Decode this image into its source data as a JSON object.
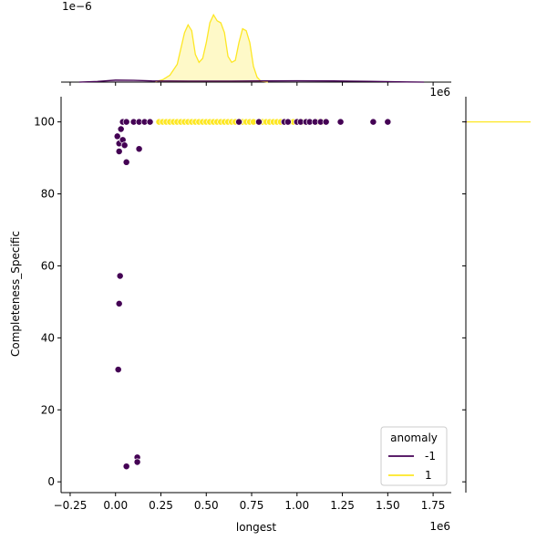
{
  "chart_data": {
    "type": "scatter",
    "title": "",
    "xlabel": "longest",
    "ylabel": "Completeness_Specific",
    "x_offset_label": "1e6",
    "x_scale": 1000000,
    "xlim": [
      -300000,
      1850000
    ],
    "ylim": [
      -3,
      107
    ],
    "x_ticks": [
      -250000,
      0,
      250000,
      500000,
      750000,
      1000000,
      1250000,
      1500000,
      1750000
    ],
    "x_tick_labels": [
      "−0.25",
      "0.00",
      "0.25",
      "0.50",
      "0.75",
      "1.00",
      "1.25",
      "1.50",
      "1.75"
    ],
    "y_ticks": [
      0,
      20,
      40,
      60,
      80,
      100
    ],
    "y_tick_labels": [
      "0",
      "20",
      "40",
      "60",
      "80",
      "100"
    ],
    "grid": false,
    "legend": {
      "title": "anomaly",
      "position": "lower-right",
      "entries": [
        {
          "label": "-1",
          "color": "#440154"
        },
        {
          "label": "1",
          "color": "#fde725"
        }
      ]
    },
    "series": [
      {
        "name": "1",
        "color": "#fde725",
        "points": [
          [
            240000,
            100
          ],
          [
            260000,
            100
          ],
          [
            280000,
            100
          ],
          [
            300000,
            100
          ],
          [
            320000,
            100
          ],
          [
            340000,
            100
          ],
          [
            360000,
            100
          ],
          [
            380000,
            100
          ],
          [
            400000,
            100
          ],
          [
            420000,
            100
          ],
          [
            440000,
            100
          ],
          [
            460000,
            100
          ],
          [
            480000,
            100
          ],
          [
            500000,
            100
          ],
          [
            520000,
            100
          ],
          [
            540000,
            100
          ],
          [
            560000,
            100
          ],
          [
            580000,
            100
          ],
          [
            600000,
            100
          ],
          [
            620000,
            100
          ],
          [
            640000,
            100
          ],
          [
            660000,
            100
          ],
          [
            690000,
            100
          ],
          [
            700000,
            100
          ],
          [
            720000,
            100
          ],
          [
            740000,
            100
          ],
          [
            760000,
            100
          ],
          [
            790000,
            100
          ],
          [
            810000,
            100
          ],
          [
            830000,
            100
          ],
          [
            850000,
            100
          ],
          [
            870000,
            100
          ],
          [
            890000,
            100
          ],
          [
            910000,
            100
          ],
          [
            960000,
            100
          ],
          [
            980000,
            100
          ],
          [
            1030000,
            100
          ],
          [
            1070000,
            100
          ],
          [
            1120000,
            100
          ],
          [
            1140000,
            100
          ],
          [
            1160000,
            100
          ]
        ]
      },
      {
        "name": "-1",
        "color": "#440154",
        "points": [
          [
            10000,
            96
          ],
          [
            20000,
            94
          ],
          [
            20000,
            91.8
          ],
          [
            30000,
            98
          ],
          [
            40000,
            95
          ],
          [
            50000,
            93.5
          ],
          [
            60000,
            88.8
          ],
          [
            130000,
            92.5
          ],
          [
            40000,
            100
          ],
          [
            60000,
            100
          ],
          [
            100000,
            100
          ],
          [
            130000,
            100
          ],
          [
            160000,
            100
          ],
          [
            190000,
            100
          ],
          [
            680000,
            100
          ],
          [
            790000,
            100
          ],
          [
            930000,
            100
          ],
          [
            950000,
            100
          ],
          [
            1000000,
            100
          ],
          [
            1020000,
            100
          ],
          [
            1050000,
            100
          ],
          [
            1070000,
            100
          ],
          [
            1100000,
            100
          ],
          [
            1130000,
            100
          ],
          [
            1160000,
            100
          ],
          [
            1240000,
            100
          ],
          [
            1420000,
            100
          ],
          [
            1500000,
            100
          ],
          [
            25000,
            57.2
          ],
          [
            20000,
            49.5
          ],
          [
            15000,
            31.2
          ],
          [
            120000,
            6.8
          ],
          [
            120000,
            5.5
          ],
          [
            60000,
            4.3
          ]
        ]
      }
    ],
    "marginal_x": {
      "offset_label": "1e−6",
      "series": [
        {
          "name": "1",
          "color": "#fde725",
          "density_x": [
            220000,
            260000,
            300000,
            340000,
            380000,
            400000,
            420000,
            440000,
            460000,
            480000,
            500000,
            520000,
            540000,
            560000,
            580000,
            600000,
            620000,
            640000,
            660000,
            680000,
            700000,
            720000,
            740000,
            760000,
            780000,
            800000,
            840000
          ],
          "density_y": [
            0.02,
            0.12,
            0.35,
            0.9,
            2.5,
            2.9,
            2.6,
            1.4,
            1.0,
            1.2,
            2.0,
            3.0,
            3.4,
            3.1,
            3.0,
            2.5,
            1.3,
            1.0,
            1.1,
            2.0,
            2.7,
            2.6,
            2.0,
            0.8,
            0.25,
            0.05,
            0.0
          ]
        },
        {
          "name": "-1",
          "color": "#440154",
          "density_x": [
            -200000,
            -100000,
            0,
            100000,
            200000,
            400000,
            600000,
            800000,
            1000000,
            1200000,
            1400000,
            1600000,
            1700000
          ],
          "density_y": [
            0.0,
            0.03,
            0.1,
            0.09,
            0.06,
            0.05,
            0.05,
            0.06,
            0.07,
            0.06,
            0.04,
            0.01,
            0.0
          ]
        }
      ]
    },
    "marginal_y": {
      "series": [
        {
          "name": "1",
          "color": "#fde725",
          "peak_y": 100
        },
        {
          "name": "-1",
          "color": "#440154",
          "peak_y": 100
        }
      ]
    }
  }
}
